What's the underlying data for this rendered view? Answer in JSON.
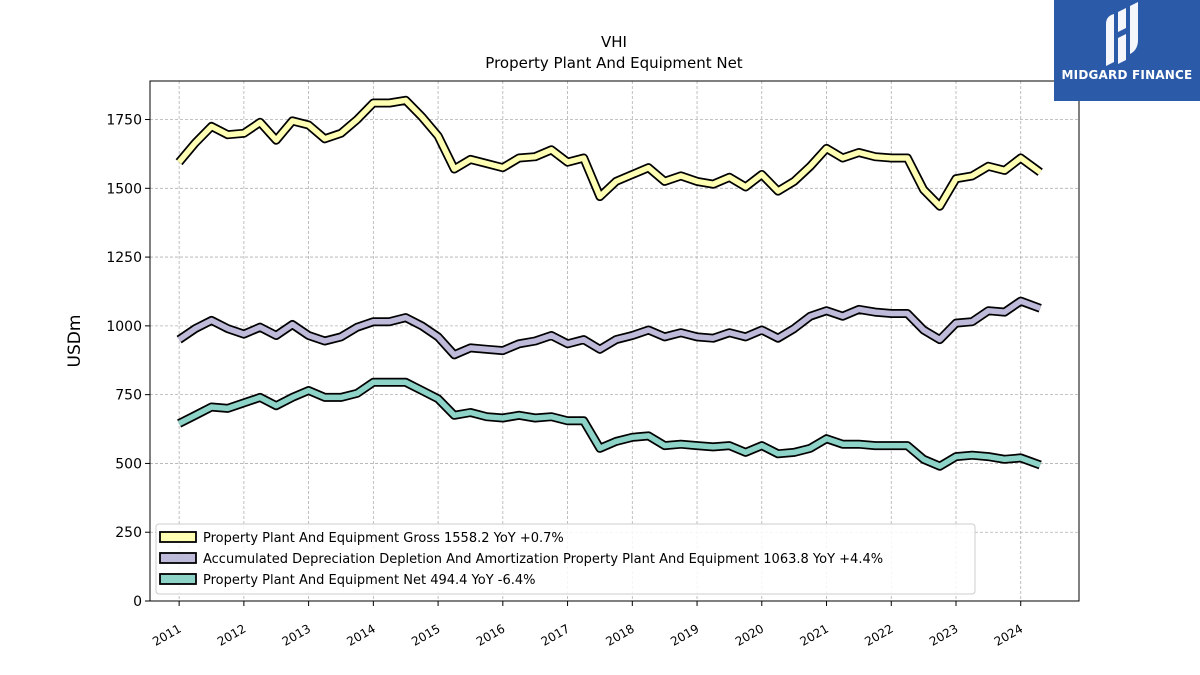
{
  "brand": {
    "name": "MIDGARD FINANCE",
    "bg_color": "#2b5aa8",
    "text_color": "#ffffff"
  },
  "chart_data": {
    "type": "line",
    "title": "VHI",
    "subtitle": "Property Plant And Equipment Net",
    "xlabel": "",
    "ylabel": "USDm",
    "ylim": [
      0,
      1890
    ],
    "yticks": [
      0,
      250,
      500,
      750,
      1000,
      1250,
      1500,
      1750
    ],
    "xlim": [
      2010.55,
      2024.9
    ],
    "xticks": [
      2011,
      2012,
      2013,
      2014,
      2015,
      2016,
      2017,
      2018,
      2019,
      2020,
      2021,
      2022,
      2023,
      2024
    ],
    "grid": true,
    "legend_position": "lower-left",
    "x": [
      2011.0,
      2011.25,
      2011.5,
      2011.75,
      2012.0,
      2012.25,
      2012.5,
      2012.75,
      2013.0,
      2013.25,
      2013.5,
      2013.75,
      2014.0,
      2014.25,
      2014.5,
      2014.75,
      2015.0,
      2015.25,
      2015.5,
      2015.75,
      2016.0,
      2016.25,
      2016.5,
      2016.75,
      2017.0,
      2017.25,
      2017.5,
      2017.75,
      2018.0,
      2018.25,
      2018.5,
      2018.75,
      2019.0,
      2019.25,
      2019.5,
      2019.75,
      2020.0,
      2020.25,
      2020.5,
      2020.75,
      2021.0,
      2021.25,
      2021.5,
      2021.75,
      2022.0,
      2022.25,
      2022.5,
      2022.75,
      2023.0,
      2023.25,
      2023.5,
      2023.75,
      2024.0,
      2024.3
    ],
    "series": [
      {
        "name": "Property Plant And Equipment Gross",
        "legend_label": "Property Plant And Equipment Gross  1558.2 YoY +0.7%",
        "color": "#ffffb3",
        "values": [
          1595,
          1665,
          1725,
          1695,
          1700,
          1740,
          1675,
          1745,
          1730,
          1680,
          1700,
          1750,
          1810,
          1810,
          1820,
          1760,
          1690,
          1570,
          1605,
          1590,
          1575,
          1610,
          1615,
          1640,
          1595,
          1610,
          1470,
          1525,
          1550,
          1575,
          1525,
          1545,
          1525,
          1515,
          1540,
          1505,
          1550,
          1490,
          1525,
          1580,
          1645,
          1610,
          1630,
          1615,
          1610,
          1610,
          1495,
          1435,
          1535,
          1545,
          1580,
          1565,
          1610,
          1558
        ]
      },
      {
        "name": "Accumulated Depreciation Depletion And Amortization Property Plant And Equipment",
        "legend_label": "Accumulated Depreciation Depletion And Amortization Property Plant And Equipment  1063.8 YoY +4.4%",
        "color": "#bebada",
        "values": [
          950,
          990,
          1020,
          990,
          970,
          995,
          965,
          1005,
          965,
          945,
          960,
          995,
          1015,
          1015,
          1030,
          1000,
          960,
          895,
          920,
          915,
          910,
          935,
          945,
          965,
          935,
          950,
          915,
          950,
          965,
          985,
          960,
          975,
          960,
          955,
          975,
          960,
          985,
          955,
          990,
          1035,
          1055,
          1035,
          1060,
          1050,
          1045,
          1045,
          985,
          950,
          1010,
          1015,
          1055,
          1050,
          1090,
          1063.8
        ]
      },
      {
        "name": "Property Plant And Equipment Net",
        "legend_label": "Property Plant And Equipment Net  494.4 YoY -6.4%",
        "color": "#8dd3c7",
        "values": [
          645,
          675,
          705,
          700,
          720,
          740,
          710,
          740,
          765,
          740,
          740,
          755,
          795,
          795,
          795,
          765,
          735,
          675,
          685,
          670,
          665,
          675,
          665,
          670,
          655,
          655,
          555,
          580,
          595,
          600,
          565,
          570,
          565,
          560,
          565,
          540,
          565,
          535,
          540,
          555,
          590,
          570,
          570,
          565,
          565,
          565,
          515,
          490,
          525,
          530,
          525,
          515,
          520,
          494.4
        ]
      }
    ]
  }
}
